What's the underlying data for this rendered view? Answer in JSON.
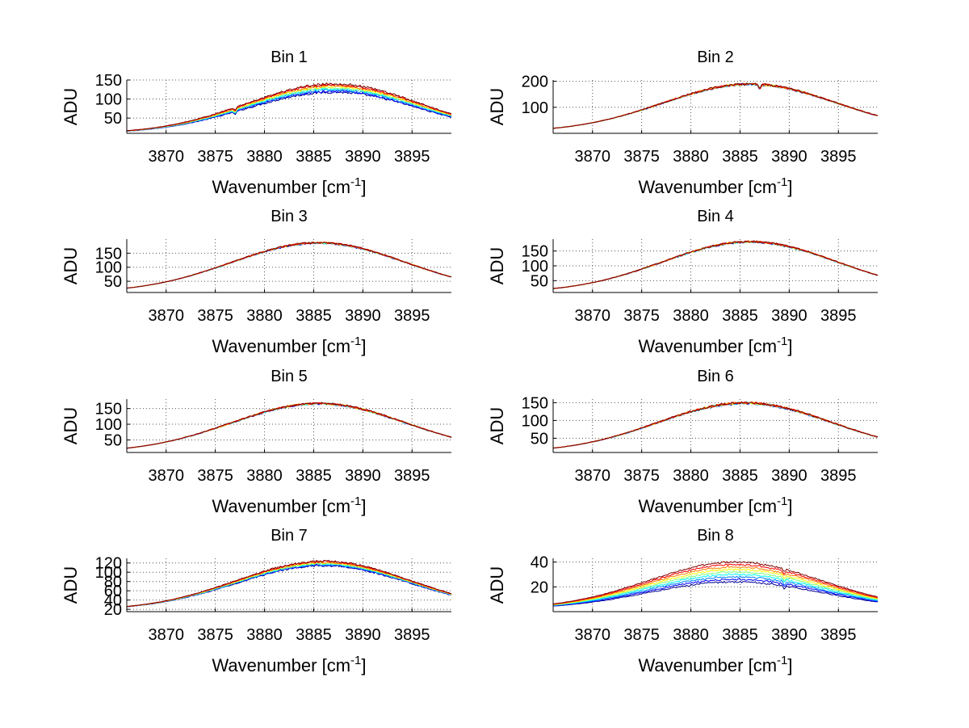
{
  "figure": {
    "background": "#ffffff",
    "grid_color": "#555555"
  },
  "series_colors": [
    "#00008f",
    "#0000ff",
    "#0080ff",
    "#00ffff",
    "#80ff80",
    "#ffff00",
    "#ff8000",
    "#ff0000",
    "#800000"
  ],
  "chart_data": [
    {
      "type": "line",
      "title": "Bin 1",
      "xlabel": "Wavenumber [cm",
      "xlabel_sup": "-1",
      "xlabel_end": "]",
      "ylabel": "ADU",
      "xlim": [
        3866,
        3899
      ],
      "ylim": [
        10,
        150
      ],
      "xticks": [
        3870,
        3875,
        3880,
        3885,
        3890,
        3895
      ],
      "xtick_labels": [
        "3870",
        "3875",
        "3880",
        "3885",
        "3890",
        "3895"
      ],
      "yticks": [
        50,
        100,
        150
      ],
      "ytick_labels": [
        "50",
        "100",
        "150"
      ],
      "grid": true,
      "series_count": 9,
      "shape": {
        "peak_x": 3887,
        "width": 12.5,
        "base": 9,
        "peak_min": 118,
        "peak_max": 140,
        "dip_x": 3877,
        "dip_depth": 8,
        "noise": 3
      }
    },
    {
      "type": "line",
      "title": "Bin 2",
      "xlabel": "Wavenumber [cm",
      "xlabel_sup": "-1",
      "xlabel_end": "]",
      "ylabel": "ADU",
      "xlim": [
        3866,
        3899
      ],
      "ylim": [
        0,
        205
      ],
      "xticks": [
        3870,
        3875,
        3880,
        3885,
        3890,
        3895
      ],
      "xtick_labels": [
        "3870",
        "3875",
        "3880",
        "3885",
        "3890",
        "3895"
      ],
      "yticks": [
        100,
        200
      ],
      "ytick_labels": [
        "100",
        "200"
      ],
      "grid": true,
      "series_count": 9,
      "shape": {
        "peak_x": 3886,
        "width": 12.5,
        "base": 5,
        "peak_min": 188,
        "peak_max": 190,
        "dip_x": 3887,
        "dip_depth": 18,
        "noise": 4
      }
    },
    {
      "type": "line",
      "title": "Bin 3",
      "xlabel": "Wavenumber [cm",
      "xlabel_sup": "-1",
      "xlabel_end": "]",
      "ylabel": "ADU",
      "xlim": [
        3866,
        3899
      ],
      "ylim": [
        10,
        200
      ],
      "xticks": [
        3870,
        3875,
        3880,
        3885,
        3890,
        3895
      ],
      "xtick_labels": [
        "3870",
        "3875",
        "3880",
        "3885",
        "3890",
        "3895"
      ],
      "yticks": [
        50,
        100,
        150
      ],
      "ytick_labels": [
        "50",
        "100",
        "150"
      ],
      "grid": true,
      "series_count": 9,
      "shape": {
        "peak_x": 3885.5,
        "width": 12.5,
        "base": 10,
        "peak_min": 186,
        "peak_max": 188,
        "dip_x": 0,
        "dip_depth": 0,
        "noise": 3
      }
    },
    {
      "type": "line",
      "title": "Bin 4",
      "xlabel": "Wavenumber [cm",
      "xlabel_sup": "-1",
      "xlabel_end": "]",
      "ylabel": "ADU",
      "xlim": [
        3866,
        3899
      ],
      "ylim": [
        10,
        190
      ],
      "xticks": [
        3870,
        3875,
        3880,
        3885,
        3890,
        3895
      ],
      "xtick_labels": [
        "3870",
        "3875",
        "3880",
        "3885",
        "3890",
        "3895"
      ],
      "yticks": [
        50,
        100,
        150
      ],
      "ytick_labels": [
        "50",
        "100",
        "150"
      ],
      "grid": true,
      "series_count": 9,
      "shape": {
        "peak_x": 3886,
        "width": 12.5,
        "base": 10,
        "peak_min": 180,
        "peak_max": 182,
        "dip_x": 0,
        "dip_depth": 0,
        "noise": 3
      }
    },
    {
      "type": "line",
      "title": "Bin 5",
      "xlabel": "Wavenumber [cm",
      "xlabel_sup": "-1",
      "xlabel_end": "]",
      "ylabel": "ADU",
      "xlim": [
        3866,
        3899
      ],
      "ylim": [
        10,
        180
      ],
      "xticks": [
        3870,
        3875,
        3880,
        3885,
        3890,
        3895
      ],
      "xtick_labels": [
        "3870",
        "3875",
        "3880",
        "3885",
        "3890",
        "3895"
      ],
      "yticks": [
        50,
        100,
        150
      ],
      "ytick_labels": [
        "50",
        "100",
        "150"
      ],
      "grid": true,
      "series_count": 9,
      "shape": {
        "peak_x": 3885.5,
        "width": 12.5,
        "base": 10,
        "peak_min": 165,
        "peak_max": 167,
        "dip_x": 0,
        "dip_depth": 0,
        "noise": 3
      }
    },
    {
      "type": "line",
      "title": "Bin 6",
      "xlabel": "Wavenumber [cm",
      "xlabel_sup": "-1",
      "xlabel_end": "]",
      "ylabel": "ADU",
      "xlim": [
        3866,
        3899
      ],
      "ylim": [
        10,
        160
      ],
      "xticks": [
        3870,
        3875,
        3880,
        3885,
        3890,
        3895
      ],
      "xtick_labels": [
        "3870",
        "3875",
        "3880",
        "3885",
        "3890",
        "3895"
      ],
      "yticks": [
        50,
        100,
        150
      ],
      "ytick_labels": [
        "50",
        "100",
        "150"
      ],
      "grid": true,
      "series_count": 9,
      "shape": {
        "peak_x": 3885.5,
        "width": 12.5,
        "base": 10,
        "peak_min": 148,
        "peak_max": 150,
        "dip_x": 0,
        "dip_depth": 0,
        "noise": 3
      }
    },
    {
      "type": "line",
      "title": "Bin 7",
      "xlabel": "Wavenumber [cm",
      "xlabel_sup": "-1",
      "xlabel_end": "]",
      "ylabel": "ADU",
      "xlim": [
        3866,
        3899
      ],
      "ylim": [
        15,
        130
      ],
      "xticks": [
        3870,
        3875,
        3880,
        3885,
        3890,
        3895
      ],
      "xtick_labels": [
        "3870",
        "3875",
        "3880",
        "3885",
        "3890",
        "3895"
      ],
      "yticks": [
        20,
        40,
        60,
        80,
        100,
        120
      ],
      "ytick_labels": [
        "20",
        "40",
        "60",
        "80",
        "100",
        "120"
      ],
      "grid": true,
      "series_count": 9,
      "shape": {
        "peak_x": 3886,
        "width": 12.5,
        "base": 18,
        "peak_min": 114,
        "peak_max": 124,
        "dip_x": 0,
        "dip_depth": 0,
        "noise": 2
      }
    },
    {
      "type": "line",
      "title": "Bin 8",
      "xlabel": "Wavenumber [cm",
      "xlabel_sup": "-1",
      "xlabel_end": "]",
      "ylabel": "ADU",
      "xlim": [
        3866,
        3899
      ],
      "ylim": [
        0,
        43
      ],
      "xticks": [
        3870,
        3875,
        3880,
        3885,
        3890,
        3895
      ],
      "xtick_labels": [
        "3870",
        "3875",
        "3880",
        "3885",
        "3890",
        "3895"
      ],
      "yticks": [
        20,
        40
      ],
      "ytick_labels": [
        "20",
        "40"
      ],
      "grid": true,
      "series_count": 9,
      "shape": {
        "peak_x": 3884.5,
        "width": 12.5,
        "base": 2,
        "peak_min": 24,
        "peak_max": 40,
        "dip_x": 3889.5,
        "dip_depth": 2.5,
        "noise": 0.7
      }
    }
  ]
}
